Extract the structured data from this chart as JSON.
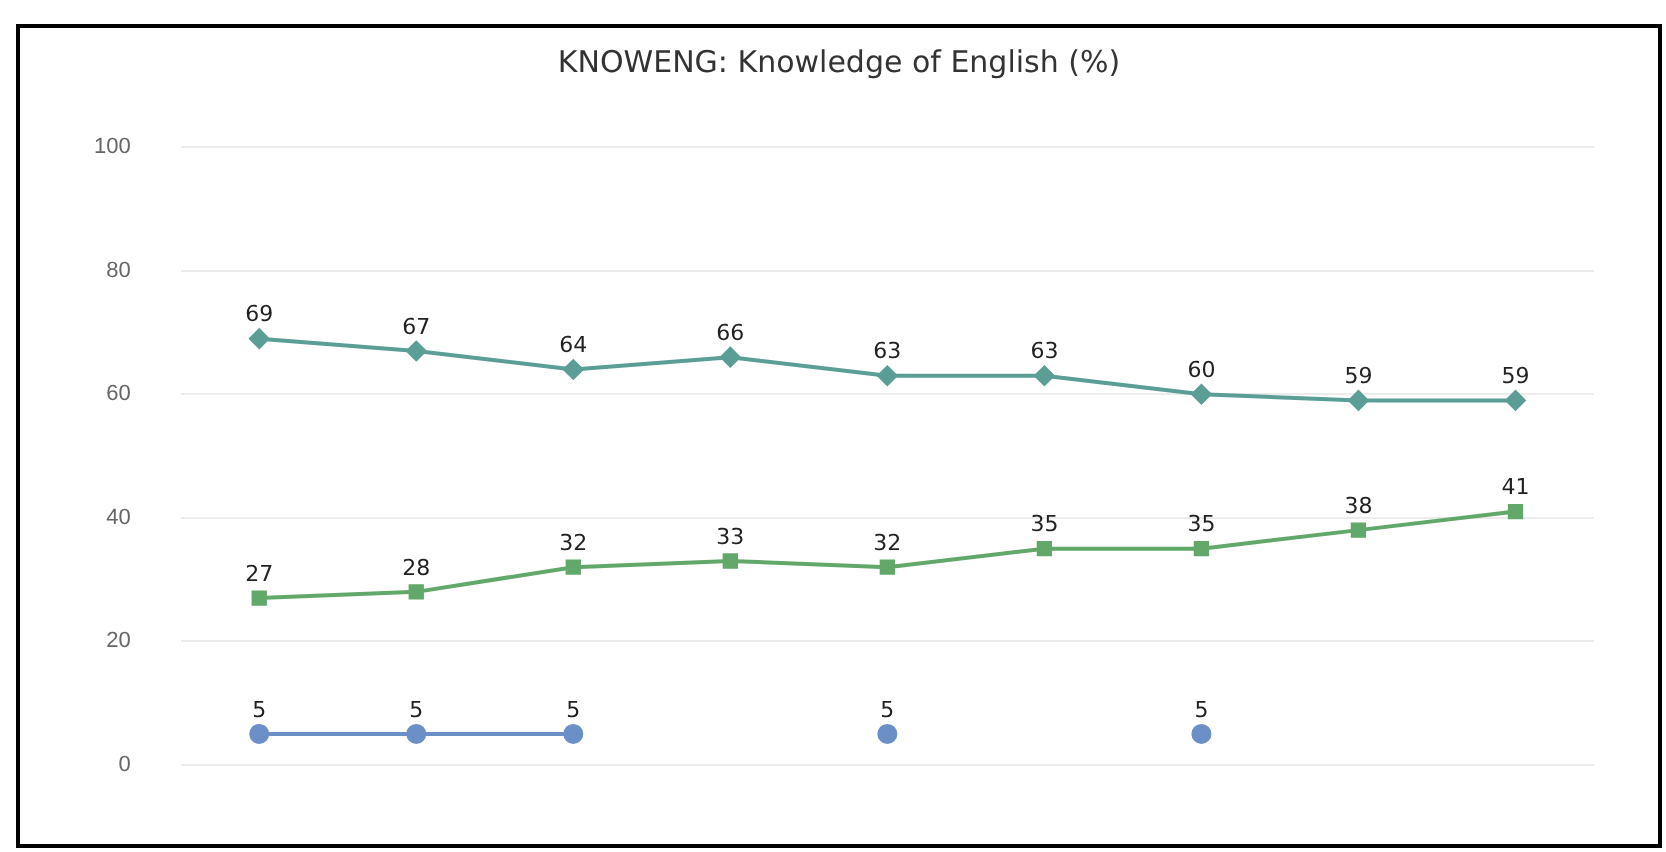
{
  "chart_data": {
    "type": "line",
    "title": "KNOWENG: Knowledge of English (%)",
    "categories": [
      null,
      null,
      null,
      null,
      null,
      null,
      null,
      null,
      null
    ],
    "series": [
      {
        "color": "#5a9e96",
        "marker": "diamond",
        "values": [
          69,
          67,
          64,
          66,
          63,
          63,
          60,
          59,
          59
        ]
      },
      {
        "color": "#62a86a",
        "marker": "square",
        "values": [
          27,
          28,
          32,
          33,
          32,
          35,
          35,
          38,
          41
        ]
      },
      {
        "color": "#6b8fc7",
        "marker": "circle",
        "values": [
          5,
          5,
          5,
          null,
          5,
          null,
          5,
          null,
          null
        ]
      }
    ],
    "ylim": [
      0,
      100
    ],
    "yticks": [
      0,
      20,
      40,
      60,
      80,
      100
    ],
    "grid": "y",
    "legend": false,
    "data_labels": true,
    "tick_labels": "y"
  }
}
